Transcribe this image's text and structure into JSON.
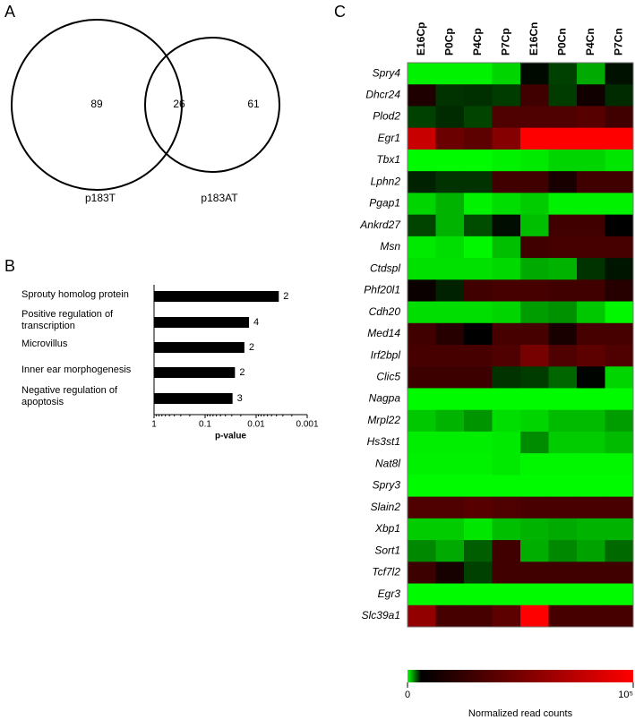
{
  "chart_data": [
    {
      "type": "venn",
      "panel": "A",
      "sets": [
        "p183T",
        "p183AT"
      ],
      "values": [
        89,
        26,
        61
      ]
    },
    {
      "type": "bar",
      "panel": "B",
      "orientation": "horizontal",
      "categories": [
        "Sprouty homolog protein",
        "Positive regulation of transcription",
        "Microvillus",
        "Inner ear morphogenesis",
        "Negative regulation of apoptosis"
      ],
      "values": [
        0.0036,
        0.0138,
        0.017,
        0.026,
        0.029
      ],
      "counts": [
        2,
        4,
        2,
        2,
        3
      ],
      "color": "#000000",
      "xlabel": "p-value",
      "xscale": "log",
      "xlim": [
        1,
        0.001
      ],
      "xticks": [
        1,
        0.1,
        0.01,
        0.001
      ]
    },
    {
      "type": "heatmap",
      "panel": "C",
      "columns": [
        "E16Cp",
        "P0Cp",
        "P4Cp",
        "P7Cp",
        "E16Cn",
        "P0Cn",
        "P4Cn",
        "P7Cn"
      ],
      "rows": [
        "Spry4",
        "Dhcr24",
        "Plod2",
        "Egr1",
        "Tbx1",
        "Lphn2",
        "Pgap1",
        "Ankrd27",
        "Msn",
        "Ctdspl",
        "Phf20l1",
        "Cdh20",
        "Med14",
        "Irf2bpl",
        "Clic5",
        "Nagpa",
        "Mrpl22",
        "Hs3st1",
        "Nat8l",
        "Spry3",
        "Slain2",
        "Xbp1",
        "Sort1",
        "Tcf7l2",
        "Egr3",
        "Slc39a1"
      ],
      "values": [
        [
          300,
          300,
          300,
          1000,
          5800,
          4500,
          2000,
          5600
        ],
        [
          17000,
          4800,
          4900,
          4600,
          30000,
          4600,
          12000,
          5000
        ],
        [
          4500,
          5000,
          4400,
          35000,
          35000,
          35000,
          38000,
          30000
        ],
        [
          80000,
          45000,
          40000,
          55000,
          100000,
          100000,
          100000,
          100000
        ],
        [
          100,
          100,
          100,
          300,
          500,
          1000,
          1000,
          600
        ],
        [
          5200,
          4800,
          4800,
          30000,
          30000,
          15000,
          30000,
          30000
        ],
        [
          1000,
          1800,
          300,
          800,
          1200,
          300,
          300,
          300
        ],
        [
          4400,
          1800,
          4200,
          5700,
          1500,
          30000,
          30000,
          6000
        ],
        [
          500,
          800,
          200,
          1500,
          30000,
          32000,
          32000,
          32000
        ],
        [
          700,
          700,
          700,
          900,
          2000,
          1800,
          4800,
          5500
        ],
        [
          10000,
          5200,
          30000,
          32000,
          32000,
          30000,
          30000,
          20000
        ],
        [
          800,
          800,
          800,
          1000,
          2300,
          2600,
          1300,
          200
        ],
        [
          30000,
          20000,
          6000,
          32000,
          32000,
          15000,
          32000,
          32000
        ],
        [
          32000,
          32000,
          32000,
          35000,
          50000,
          35000,
          40000,
          35000
        ],
        [
          28000,
          28000,
          28000,
          4800,
          4600,
          3600,
          5900,
          1000
        ],
        [
          100,
          100,
          100,
          100,
          100,
          100,
          100,
          100
        ],
        [
          1300,
          1800,
          2500,
          800,
          1000,
          1600,
          1600,
          2300
        ],
        [
          400,
          400,
          400,
          500,
          2700,
          1200,
          1200,
          1600
        ],
        [
          300,
          300,
          300,
          500,
          200,
          200,
          200,
          200
        ],
        [
          100,
          100,
          100,
          100,
          100,
          100,
          100,
          100
        ],
        [
          35000,
          35000,
          38000,
          35000,
          33000,
          33000,
          33000,
          33000
        ],
        [
          1200,
          1200,
          600,
          1500,
          1800,
          2000,
          1800,
          1800
        ],
        [
          2800,
          2000,
          3800,
          30000,
          1900,
          2800,
          2200,
          3500
        ],
        [
          28000,
          14000,
          4500,
          30000,
          30000,
          30000,
          30000,
          30000
        ],
        [
          100,
          100,
          100,
          100,
          100,
          100,
          100,
          100
        ],
        [
          60000,
          32000,
          32000,
          40000,
          100000,
          32000,
          32000,
          32000
        ]
      ],
      "colorscale": [
        {
          "value": 0,
          "color": "#00ff00"
        },
        {
          "value": 6000,
          "color": "#000000"
        },
        {
          "value": 100000,
          "color": "#ff0000"
        }
      ],
      "zlim": [
        0,
        100000
      ],
      "colorbar": {
        "label": "Normalized read counts",
        "ticks": [
          0,
          {
            "value": 100000,
            "label": "10⁵"
          }
        ]
      }
    }
  ]
}
